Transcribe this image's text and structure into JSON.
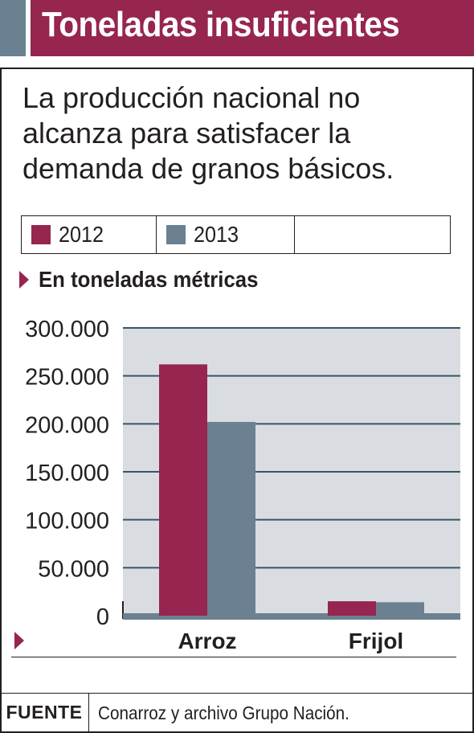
{
  "header": {
    "title": "Toneladas insuficientes"
  },
  "subtitle": "La producción nacional no alcanza para satisfacer la demanda de granos básicos.",
  "legend": [
    {
      "label": "2012",
      "color": "#96254f"
    },
    {
      "label": "2013",
      "color": "#6b8090"
    }
  ],
  "unit_label": "En toneladas métricas",
  "chart_data": {
    "type": "bar",
    "categories": [
      "Arroz",
      "Frijol"
    ],
    "series": [
      {
        "name": "2012",
        "values": [
          262000,
          15000
        ],
        "color": "#96254f"
      },
      {
        "name": "2013",
        "values": [
          202000,
          14000
        ],
        "color": "#6b8090"
      }
    ],
    "y_ticks": [
      0,
      50000,
      100000,
      150000,
      200000,
      250000,
      300000
    ],
    "y_tick_labels": [
      "0",
      "50.000",
      "100.000",
      "150.000",
      "200.000",
      "250.000",
      "300.000"
    ],
    "ylim": [
      0,
      300000
    ],
    "grid": true,
    "plot_background": "#d9dde1",
    "gridline_color": "#3d5363"
  },
  "source": {
    "label": "FUENTE",
    "text": "Conarroz y archivo Grupo Nación."
  }
}
